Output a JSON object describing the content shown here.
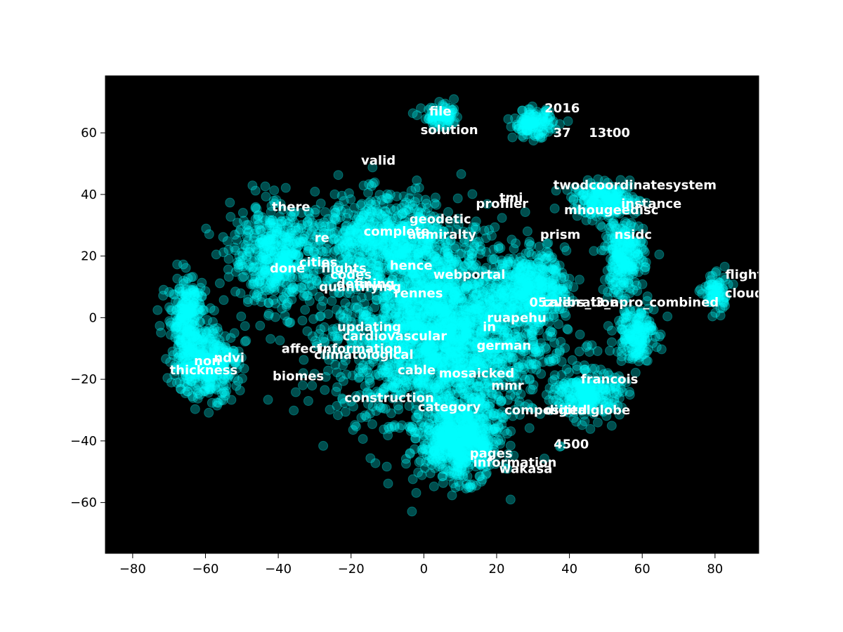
{
  "chart_data": {
    "type": "scatter",
    "title": "",
    "xlabel": "",
    "ylabel": "",
    "xlim": [
      -87.5,
      92
    ],
    "ylim": [
      -76.5,
      78.5
    ],
    "xticks": [
      -80,
      -60,
      -40,
      -20,
      0,
      20,
      40,
      60,
      80
    ],
    "yticks": [
      -60,
      -40,
      -20,
      0,
      20,
      40,
      60
    ],
    "xtick_labels": [
      "−80",
      "−60",
      "−40",
      "−20",
      "0",
      "20",
      "40",
      "60",
      "80"
    ],
    "ytick_labels": [
      "−60",
      "−40",
      "−20",
      "0",
      "20",
      "40",
      "60"
    ],
    "grid": false,
    "legend": "none",
    "background_color": "#000000",
    "point_color": "#00ffff",
    "point_alpha": 0.3,
    "label_color": "#ffffff",
    "clusters": [
      {
        "center": [
          5,
          -5
        ],
        "spread": [
          32,
          32
        ],
        "count": 2400
      },
      {
        "center": [
          -10,
          25
        ],
        "spread": [
          22,
          16
        ],
        "count": 700
      },
      {
        "center": [
          10,
          -40
        ],
        "spread": [
          12,
          14
        ],
        "count": 650
      },
      {
        "center": [
          -60,
          -15
        ],
        "spread": [
          10,
          12
        ],
        "count": 380
      },
      {
        "center": [
          -40,
          20
        ],
        "spread": [
          14,
          18
        ],
        "count": 500
      },
      {
        "center": [
          30,
          63
        ],
        "spread": [
          6,
          5
        ],
        "count": 130
      },
      {
        "center": [
          5,
          65
        ],
        "spread": [
          6,
          4
        ],
        "count": 80
      },
      {
        "center": [
          55,
          20
        ],
        "spread": [
          6,
          14
        ],
        "count": 260
      },
      {
        "center": [
          50,
          38
        ],
        "spread": [
          10,
          6
        ],
        "count": 220
      },
      {
        "center": [
          58,
          -5
        ],
        "spread": [
          6,
          10
        ],
        "count": 180
      },
      {
        "center": [
          45,
          -25
        ],
        "spread": [
          10,
          8
        ],
        "count": 260
      },
      {
        "center": [
          80,
          8
        ],
        "spread": [
          4,
          7
        ],
        "count": 80
      },
      {
        "center": [
          -65,
          0
        ],
        "spread": [
          6,
          15
        ],
        "count": 250
      },
      {
        "center": [
          30,
          10
        ],
        "spread": [
          10,
          12
        ],
        "count": 350
      }
    ],
    "labels": [
      {
        "text": "file",
        "x": 4.5,
        "y": 67
      },
      {
        "text": "solution",
        "x": 7,
        "y": 61
      },
      {
        "text": "2016",
        "x": 38,
        "y": 68
      },
      {
        "text": "37",
        "x": 38,
        "y": 60
      },
      {
        "text": "13t00",
        "x": 51,
        "y": 60
      },
      {
        "text": "valid",
        "x": -12.5,
        "y": 51
      },
      {
        "text": "twodcoordinatesystem",
        "x": 58,
        "y": 43
      },
      {
        "text": "tmi",
        "x": 24,
        "y": 39
      },
      {
        "text": "profiler",
        "x": 21.5,
        "y": 37
      },
      {
        "text": "instance",
        "x": 62.5,
        "y": 37
      },
      {
        "text": "mhougeedisc",
        "x": 51.5,
        "y": 35
      },
      {
        "text": "there",
        "x": -36.5,
        "y": 36
      },
      {
        "text": "geodetic",
        "x": 4.5,
        "y": 32
      },
      {
        "text": "complete",
        "x": -7.5,
        "y": 28
      },
      {
        "text": "admiralty",
        "x": 5,
        "y": 27
      },
      {
        "text": "prism",
        "x": 37.5,
        "y": 27
      },
      {
        "text": "nsidc",
        "x": 57.5,
        "y": 27
      },
      {
        "text": "re",
        "x": -28,
        "y": 26
      },
      {
        "text": "cities",
        "x": -29,
        "y": 18
      },
      {
        "text": "hence",
        "x": -3.5,
        "y": 17
      },
      {
        "text": "done",
        "x": -37.5,
        "y": 16
      },
      {
        "text": "flights",
        "x": -22,
        "y": 16
      },
      {
        "text": "codes",
        "x": -20,
        "y": 14
      },
      {
        "text": "webportal",
        "x": 12.5,
        "y": 14
      },
      {
        "text": "defining",
        "x": -16,
        "y": 11
      },
      {
        "text": "quantifying",
        "x": -17.5,
        "y": 10
      },
      {
        "text": "rennes",
        "x": -1.5,
        "y": 8
      },
      {
        "text": "flight",
        "x": 88,
        "y": 14
      },
      {
        "text": "cloud",
        "x": 88,
        "y": 8
      },
      {
        "text": "05zvers_i3_apro_combined",
        "x": 55,
        "y": 5
      },
      {
        "text": "calibration",
        "x": 43,
        "y": 5
      },
      {
        "text": "ruapehu",
        "x": 25.5,
        "y": 0
      },
      {
        "text": "updating",
        "x": -15,
        "y": -3
      },
      {
        "text": "in",
        "x": 18,
        "y": -3
      },
      {
        "text": "cardiovascular",
        "x": -8,
        "y": -6
      },
      {
        "text": "german",
        "x": 22,
        "y": -9
      },
      {
        "text": "affect",
        "x": -33.5,
        "y": -10
      },
      {
        "text": "information",
        "x": -17.5,
        "y": -10
      },
      {
        "text": "climatological",
        "x": -16.5,
        "y": -12
      },
      {
        "text": "ndvi",
        "x": -53.5,
        "y": -13
      },
      {
        "text": "non",
        "x": -59.5,
        "y": -14
      },
      {
        "text": "thickness",
        "x": -60.5,
        "y": -17
      },
      {
        "text": "cable",
        "x": -2,
        "y": -17
      },
      {
        "text": "mosaicked",
        "x": 14.5,
        "y": -18
      },
      {
        "text": "biomes",
        "x": -34.5,
        "y": -19
      },
      {
        "text": "francois",
        "x": 51,
        "y": -20
      },
      {
        "text": "mmr",
        "x": 23,
        "y": -22
      },
      {
        "text": "construction",
        "x": -9.5,
        "y": -26
      },
      {
        "text": "category",
        "x": 7,
        "y": -29
      },
      {
        "text": "composited",
        "x": 33.5,
        "y": -30
      },
      {
        "text": "digitalglobe",
        "x": 45,
        "y": -30
      },
      {
        "text": "4500",
        "x": 40.5,
        "y": -41
      },
      {
        "text": "pages",
        "x": 18.5,
        "y": -44
      },
      {
        "text": "information",
        "x": 25,
        "y": -47
      },
      {
        "text": "wakasa",
        "x": 28,
        "y": -49
      }
    ]
  }
}
